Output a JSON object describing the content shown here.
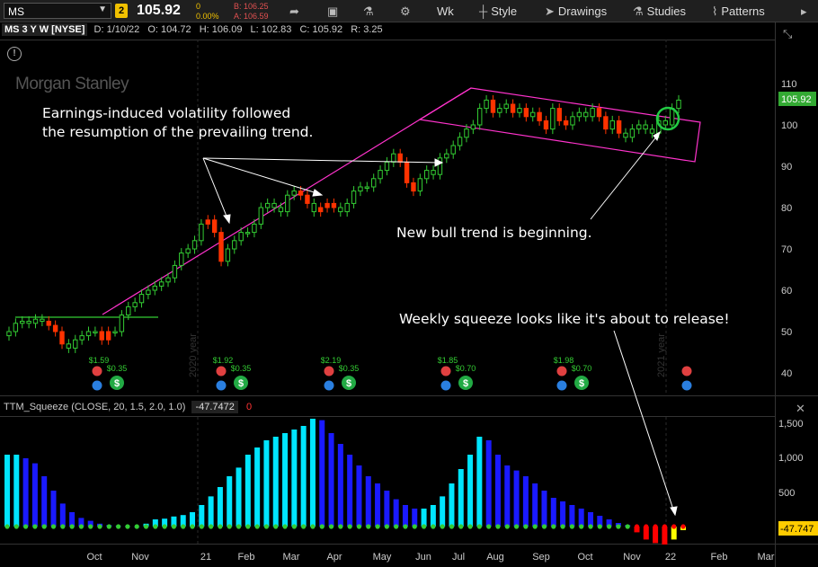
{
  "toolbar": {
    "symbol": "MS",
    "link_badge": "2",
    "last_price": "105.92",
    "change": "0",
    "change_pct": "0.00%",
    "bid": "B: 106.25",
    "ask": "A: 106.59",
    "aggregation": "Wk",
    "style_label": "Style",
    "drawings_label": "Drawings",
    "studies_label": "Studies",
    "patterns_label": "Patterns"
  },
  "header": {
    "symbol": "MS 3 Y W [NYSE]",
    "date": "D: 1/10/22",
    "open": "O: 104.72",
    "high": "H: 106.09",
    "low": "L: 102.83",
    "close": "C: 105.92",
    "range": "R: 3.25"
  },
  "watermark": "Morgan Stanley",
  "annotations": {
    "earnings_line1": "Earnings-induced volatility followed",
    "earnings_line2": "the resumption of the prevailing trend.",
    "bull": "New bull trend is beginning.",
    "squeeze": "Weekly squeeze looks like it's about to release!"
  },
  "price_axis": {
    "ticks": [
      "110",
      "100",
      "90",
      "80",
      "70",
      "60",
      "50",
      "40"
    ],
    "current_label": "105.92"
  },
  "year_labels": [
    "2020 year",
    "2021 year"
  ],
  "events": [
    {
      "dividend": "$1.59",
      "split": "$0.35"
    },
    {
      "dividend": "$1.92",
      "split": "$0.35"
    },
    {
      "dividend": "$2.19",
      "split": "$0.35"
    },
    {
      "dividend": "$1.85",
      "split": "$0.70"
    },
    {
      "dividend": "$1.98",
      "split": "$0.70"
    }
  ],
  "squeeze": {
    "title": "TTM_Squeeze (CLOSE, 20, 1.5, 2.0, 1.0)",
    "value": "-47.7472",
    "zero_label": "0",
    "axis_ticks": [
      "1,500",
      "1,000",
      "500"
    ],
    "current_label": "-47.747"
  },
  "time_axis": [
    "Oct",
    "Nov",
    "21",
    "Feb",
    "Mar",
    "Apr",
    "May",
    "Jun",
    "Jul",
    "Aug",
    "Sep",
    "Oct",
    "Nov",
    "22",
    "Feb",
    "Mar"
  ],
  "colors": {
    "up": "#33cc33",
    "down": "#ff3300",
    "channel": "#ff33cc",
    "hist_up_strong": "#00e5ff",
    "hist_up_weak": "#1a1aff",
    "hist_down_strong": "#ff0000",
    "hist_down_weak": "#ffff00",
    "dot_on": "#33cc33",
    "dot_off": "#ff0000"
  }
}
